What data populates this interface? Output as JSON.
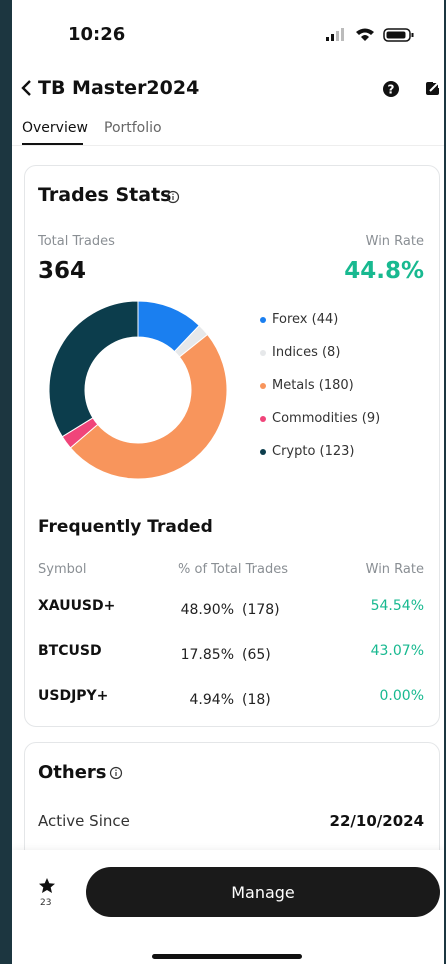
{
  "status_bar": {
    "time": "10:26"
  },
  "header": {
    "title": "TB Master2024"
  },
  "tabs": [
    "Overview",
    "Portfolio"
  ],
  "trades_stats": {
    "title": "Trades Stats",
    "total_trades_label": "Total Trades",
    "total_trades": "364",
    "win_rate_label": "Win Rate",
    "win_rate": "44.8%"
  },
  "chart_data": {
    "type": "donut",
    "labels": [
      "Forex (44)",
      "Indices (8)",
      "Metals (180)",
      "Commodities (9)",
      "Crypto (123)"
    ],
    "values": [
      44,
      8,
      180,
      9,
      123
    ],
    "colors": [
      "#1a7ff0",
      "#e6e8ea",
      "#f8955c",
      "#f0457a",
      "#0c3d4c"
    ]
  },
  "frequently_traded": {
    "title": "Frequently Traded",
    "columns": [
      "Symbol",
      "% of Total Trades",
      "Win Rate"
    ],
    "rows": [
      [
        "XAUUSD+",
        "48.90%",
        "(178)",
        "54.54%"
      ],
      [
        "BTCUSD",
        "17.85%",
        "(65)",
        "43.07%"
      ],
      [
        "USDJPY+",
        "4.94%",
        "(18)",
        "0.00%"
      ]
    ]
  },
  "others": {
    "title": "Others",
    "rows": [
      [
        "Active Since",
        "22/10/2024"
      ]
    ]
  },
  "bottom_bar": {
    "favorites": "23",
    "button": "Manage"
  }
}
